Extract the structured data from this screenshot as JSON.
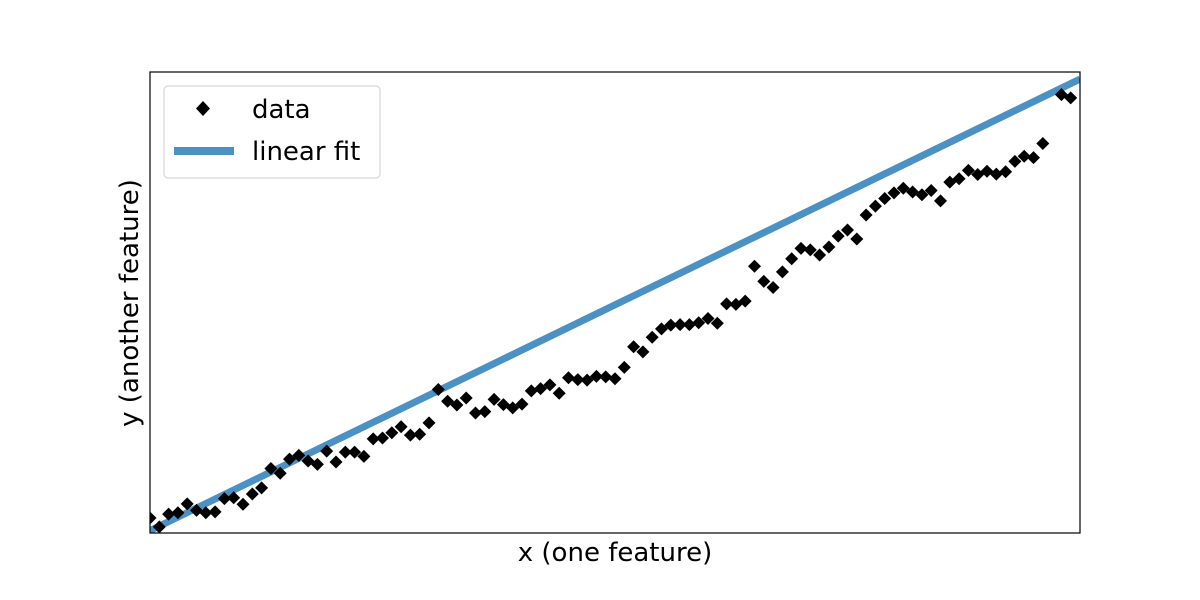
{
  "chart_data": {
    "type": "scatter",
    "title": "",
    "xlabel": "x (one feature)",
    "ylabel": "y (another feature)",
    "xlim": [
      0,
      100
    ],
    "ylim": [
      -1,
      97
    ],
    "grid": false,
    "legend_position": "top-left",
    "legend": [
      {
        "label": "data",
        "marker": "diamond",
        "color": "#000000"
      },
      {
        "label": "linear fit",
        "marker": "line",
        "color": "#4b91c3"
      }
    ],
    "series": [
      {
        "name": "data",
        "color": "#000000",
        "x": [
          0,
          1,
          2,
          3,
          4,
          5,
          6,
          7,
          8,
          9,
          10,
          11,
          12,
          13,
          14,
          15,
          16,
          17,
          18,
          19,
          20,
          21,
          22,
          23,
          24,
          25,
          26,
          27,
          28,
          29,
          30,
          31,
          32,
          33,
          34,
          35,
          36,
          37,
          38,
          39,
          40,
          41,
          42,
          43,
          44,
          45,
          46,
          47,
          48,
          49,
          50,
          51,
          52,
          53,
          54,
          55,
          56,
          57,
          58,
          59,
          60,
          61,
          62,
          63,
          64,
          65,
          66,
          67,
          68,
          69,
          70,
          71,
          72,
          73,
          74,
          75,
          76,
          77,
          78,
          79,
          80,
          81,
          82,
          83,
          84,
          85,
          86,
          87,
          88,
          89,
          90,
          91,
          92,
          93,
          94,
          95,
          96,
          97,
          98,
          99
        ],
        "y": [
          2.2,
          0.3,
          3.0,
          3.3,
          5.2,
          3.8,
          3.3,
          3.5,
          6.3,
          6.5,
          5.1,
          7.3,
          8.6,
          12.7,
          11.7,
          14.7,
          15.5,
          14.3,
          13.6,
          16.4,
          14.1,
          16.2,
          16.2,
          15.3,
          19.0,
          19.2,
          20.3,
          21.6,
          19.8,
          20.0,
          22.4,
          29.5,
          27.0,
          26.2,
          27.7,
          24.5,
          24.8,
          27.4,
          26.3,
          25.6,
          26.4,
          29.2,
          29.7,
          30.5,
          28.7,
          32.0,
          31.6,
          31.5,
          32.3,
          32.2,
          31.8,
          34.2,
          38.6,
          37.5,
          40.6,
          42.4,
          43.2,
          43.3,
          43.3,
          43.7,
          44.6,
          43.6,
          47.7,
          47.6,
          48.3,
          55.7,
          52.5,
          51.2,
          54.5,
          57.3,
          59.5,
          59.2,
          58.1,
          59.8,
          62.1,
          63.4,
          61.5,
          66.6,
          68.5,
          70.1,
          71.3,
          72.3,
          71.5,
          70.9,
          71.8,
          69.6,
          73.6,
          74.3,
          76.1,
          75.2,
          75.9,
          75.3,
          75.8,
          78.0,
          79.1,
          78.8,
          81.8,
          98.9,
          92.2,
          91.5
        ]
      },
      {
        "name": "linear fit",
        "color": "#4b91c3",
        "x": [
          0,
          100
        ],
        "y": [
          -0.5,
          95.5
        ]
      }
    ]
  }
}
